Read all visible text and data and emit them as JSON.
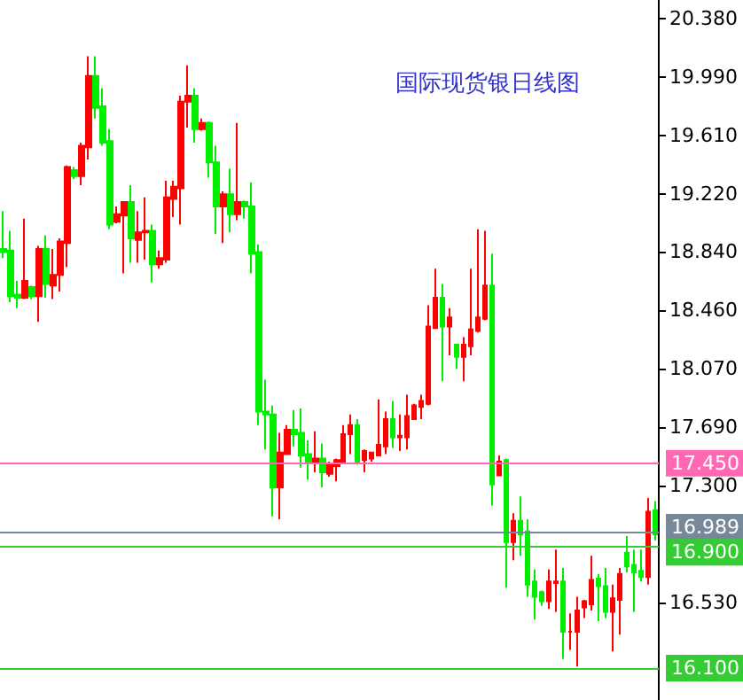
{
  "chart_data": {
    "type": "candlestick",
    "title": "国际现货银日线图",
    "categories": [
      null,
      null,
      null,
      null,
      null,
      null,
      null,
      null,
      null,
      null,
      null,
      null,
      null,
      null,
      null,
      null,
      null,
      null,
      null,
      null,
      null,
      null,
      null,
      null,
      null,
      null,
      null,
      null,
      null,
      null,
      null,
      null,
      null,
      null,
      null,
      null,
      null,
      null,
      null,
      null,
      null,
      null,
      null,
      null,
      null,
      null,
      null,
      null,
      null,
      null,
      null,
      null,
      null,
      null,
      null,
      null,
      null,
      null,
      null,
      null,
      null,
      null,
      null,
      null,
      null,
      null,
      null,
      null,
      null,
      null,
      null,
      null,
      null,
      null,
      null,
      null,
      null,
      null,
      null,
      null,
      null,
      null,
      null,
      null,
      null,
      null,
      null,
      null,
      null,
      null,
      null,
      null,
      null
    ],
    "ohlc": [
      [
        18.86,
        19.11,
        18.8,
        18.84
      ],
      [
        18.85,
        18.98,
        18.51,
        18.55
      ],
      [
        18.56,
        18.65,
        18.47,
        18.54
      ],
      [
        18.54,
        19.06,
        18.53,
        18.65
      ],
      [
        18.61,
        18.62,
        18.53,
        18.55
      ],
      [
        18.55,
        18.88,
        18.38,
        18.86
      ],
      [
        18.86,
        18.95,
        18.54,
        18.63
      ],
      [
        18.62,
        18.86,
        18.53,
        18.69
      ],
      [
        18.69,
        18.93,
        18.58,
        18.91
      ],
      [
        18.9,
        19.41,
        18.74,
        19.4
      ],
      [
        19.38,
        19.4,
        19.32,
        19.34
      ],
      [
        19.34,
        19.56,
        19.28,
        19.54
      ],
      [
        19.53,
        20.13,
        19.45,
        20.0
      ],
      [
        20.0,
        20.13,
        19.72,
        19.79
      ],
      [
        19.8,
        19.92,
        19.54,
        19.56
      ],
      [
        19.57,
        19.65,
        18.99,
        19.02
      ],
      [
        19.04,
        19.14,
        19.03,
        19.09
      ],
      [
        19.08,
        19.17,
        18.7,
        19.17
      ],
      [
        19.17,
        19.28,
        18.77,
        18.93
      ],
      [
        18.92,
        19.11,
        18.77,
        18.97
      ],
      [
        18.97,
        19.2,
        18.79,
        18.98
      ],
      [
        18.98,
        19.02,
        18.64,
        18.76
      ],
      [
        18.76,
        18.85,
        18.73,
        18.8
      ],
      [
        18.79,
        19.31,
        18.77,
        19.2
      ],
      [
        19.19,
        19.31,
        19.07,
        19.27
      ],
      [
        19.26,
        19.87,
        19.02,
        19.83
      ],
      [
        19.83,
        20.07,
        19.66,
        19.87
      ],
      [
        19.87,
        19.92,
        19.56,
        19.65
      ],
      [
        19.65,
        19.72,
        19.64,
        19.69
      ],
      [
        19.69,
        19.7,
        19.33,
        19.43
      ],
      [
        19.43,
        19.54,
        18.96,
        19.14
      ],
      [
        19.14,
        19.24,
        18.9,
        19.22
      ],
      [
        19.22,
        19.39,
        18.97,
        19.09
      ],
      [
        19.09,
        19.69,
        19.05,
        19.17
      ],
      [
        19.17,
        19.18,
        19.06,
        19.14
      ],
      [
        19.14,
        19.3,
        18.7,
        18.83
      ],
      [
        18.84,
        18.89,
        17.7,
        17.79
      ],
      [
        17.79,
        18.0,
        17.54,
        17.77
      ],
      [
        17.77,
        17.83,
        17.1,
        17.29
      ],
      [
        17.29,
        17.65,
        17.08,
        17.52
      ],
      [
        17.51,
        17.7,
        17.51,
        17.67
      ],
      [
        17.67,
        17.8,
        17.56,
        17.64
      ],
      [
        17.65,
        17.81,
        17.42,
        17.5
      ],
      [
        17.51,
        17.6,
        17.34,
        17.46
      ],
      [
        17.46,
        17.66,
        17.39,
        17.48
      ],
      [
        17.48,
        17.58,
        17.29,
        17.39
      ],
      [
        17.38,
        17.46,
        17.36,
        17.44
      ],
      [
        17.43,
        17.48,
        17.33,
        17.47
      ],
      [
        17.46,
        17.7,
        17.46,
        17.64
      ],
      [
        17.64,
        17.77,
        17.51,
        17.7
      ],
      [
        17.7,
        17.74,
        17.44,
        17.46
      ],
      [
        17.47,
        17.54,
        17.39,
        17.53
      ],
      [
        17.48,
        17.52,
        17.46,
        17.52
      ],
      [
        17.5,
        17.87,
        17.5,
        17.57
      ],
      [
        17.56,
        17.79,
        17.51,
        17.74
      ],
      [
        17.74,
        17.86,
        17.55,
        17.62
      ],
      [
        17.62,
        17.77,
        17.53,
        17.63
      ],
      [
        17.62,
        17.9,
        17.54,
        17.76
      ],
      [
        17.74,
        17.84,
        17.74,
        17.83
      ],
      [
        17.82,
        17.9,
        17.74,
        17.86
      ],
      [
        17.84,
        18.49,
        17.83,
        18.35
      ],
      [
        18.34,
        18.73,
        18.34,
        18.54
      ],
      [
        18.54,
        18.63,
        17.99,
        18.35
      ],
      [
        18.35,
        18.47,
        18.16,
        18.41
      ],
      [
        18.23,
        18.23,
        18.07,
        18.15
      ],
      [
        18.15,
        18.28,
        17.99,
        18.23
      ],
      [
        18.22,
        18.73,
        18.16,
        18.33
      ],
      [
        18.32,
        18.99,
        18.31,
        18.41
      ],
      [
        18.4,
        18.98,
        18.39,
        18.62
      ],
      [
        18.62,
        18.83,
        17.17,
        17.31
      ],
      [
        17.37,
        17.5,
        17.37,
        17.46
      ],
      [
        17.47,
        17.48,
        16.63,
        16.93
      ],
      [
        16.93,
        17.12,
        16.81,
        17.07
      ],
      [
        17.07,
        17.23,
        16.84,
        16.98
      ],
      [
        17.0,
        17.08,
        16.57,
        16.65
      ],
      [
        16.67,
        16.75,
        16.42,
        16.57
      ],
      [
        16.6,
        16.61,
        16.51,
        16.54
      ],
      [
        16.54,
        16.75,
        16.49,
        16.67
      ],
      [
        16.66,
        16.88,
        16.47,
        16.67
      ],
      [
        16.67,
        16.76,
        16.16,
        16.34
      ],
      [
        16.34,
        16.46,
        16.22,
        16.34
      ],
      [
        16.34,
        16.57,
        16.11,
        16.48
      ],
      [
        16.5,
        16.55,
        16.43,
        16.54
      ],
      [
        16.52,
        16.84,
        16.48,
        16.68
      ],
      [
        16.69,
        16.72,
        16.41,
        16.64
      ],
      [
        16.64,
        16.76,
        16.43,
        16.47
      ],
      [
        16.47,
        16.65,
        16.21,
        16.56
      ],
      [
        16.55,
        16.76,
        16.32,
        16.72
      ],
      [
        16.86,
        16.97,
        16.73,
        16.77
      ],
      [
        16.78,
        16.88,
        16.47,
        16.73
      ],
      [
        16.74,
        16.88,
        16.67,
        16.7
      ],
      [
        16.7,
        17.22,
        16.65,
        17.13
      ],
      [
        17.14,
        17.2,
        16.94,
        16.98
      ]
    ],
    "colors": [
      "#00ee00",
      "#00ee00",
      "#00ee00",
      "#ff0000",
      "#00ee00",
      "#ff0000",
      "#00ee00",
      "#ff0000",
      "#ff0000",
      "#ff0000",
      "#00ee00",
      "#ff0000",
      "#ff0000",
      "#00ee00",
      "#00ee00",
      "#00ee00",
      "#ff0000",
      "#ff0000",
      "#00ee00",
      "#ff0000",
      "#ff0000",
      "#00ee00",
      "#ff0000",
      "#ff0000",
      "#ff0000",
      "#ff0000",
      "#ff0000",
      "#00ee00",
      "#ff0000",
      "#00ee00",
      "#00ee00",
      "#ff0000",
      "#00ee00",
      "#ff0000",
      "#00ee00",
      "#00ee00",
      "#00ee00",
      "#00ee00",
      "#00ee00",
      "#ff0000",
      "#ff0000",
      "#00ee00",
      "#00ee00",
      "#00ee00",
      "#ff0000",
      "#00ee00",
      "#ff0000",
      "#ff0000",
      "#ff0000",
      "#ff0000",
      "#00ee00",
      "#ff0000",
      "#ff0000",
      "#ff0000",
      "#ff0000",
      "#00ee00",
      "#ff0000",
      "#ff0000",
      "#ff0000",
      "#ff0000",
      "#ff0000",
      "#ff0000",
      "#00ee00",
      "#ff0000",
      "#00ee00",
      "#ff0000",
      "#ff0000",
      "#ff0000",
      "#ff0000",
      "#00ee00",
      "#ff0000",
      "#00ee00",
      "#ff0000",
      "#00ee00",
      "#00ee00",
      "#00ee00",
      "#00ee00",
      "#ff0000",
      "#ff0000",
      "#00ee00",
      "#ff0000",
      "#ff0000",
      "#ff0000",
      "#ff0000",
      "#00ee00",
      "#00ee00",
      "#ff0000",
      "#ff0000",
      "#00ee00",
      "#00ee00",
      "#00ee00",
      "#ff0000",
      "#00ee00"
    ],
    "ylim": [
      15.89,
      20.5
    ],
    "yticks": [
      {
        "value": 20.38,
        "label": "20.380"
      },
      {
        "value": 19.99,
        "label": "19.990"
      },
      {
        "value": 19.61,
        "label": "19.610"
      },
      {
        "value": 19.22,
        "label": "19.220"
      },
      {
        "value": 18.84,
        "label": "18.840"
      },
      {
        "value": 18.46,
        "label": "18.460"
      },
      {
        "value": 18.07,
        "label": "18.070"
      },
      {
        "value": 17.69,
        "label": "17.690"
      },
      {
        "value": 17.3,
        "label": "17.300"
      },
      {
        "value": 16.53,
        "label": "16.530"
      }
    ],
    "ref_lines": [
      {
        "axis": "y",
        "value": 17.45,
        "label": "17.450",
        "color": "#ff69b4"
      },
      {
        "axis": "y",
        "value": 16.989,
        "label": "16.989",
        "color": "#778899"
      },
      {
        "axis": "y",
        "value": 16.9,
        "label": "16.900",
        "color": "#33cc33"
      },
      {
        "axis": "y",
        "value": 16.1,
        "label": "16.100",
        "color": "#33cc33"
      }
    ],
    "tick_labels": "y",
    "grid": false
  }
}
